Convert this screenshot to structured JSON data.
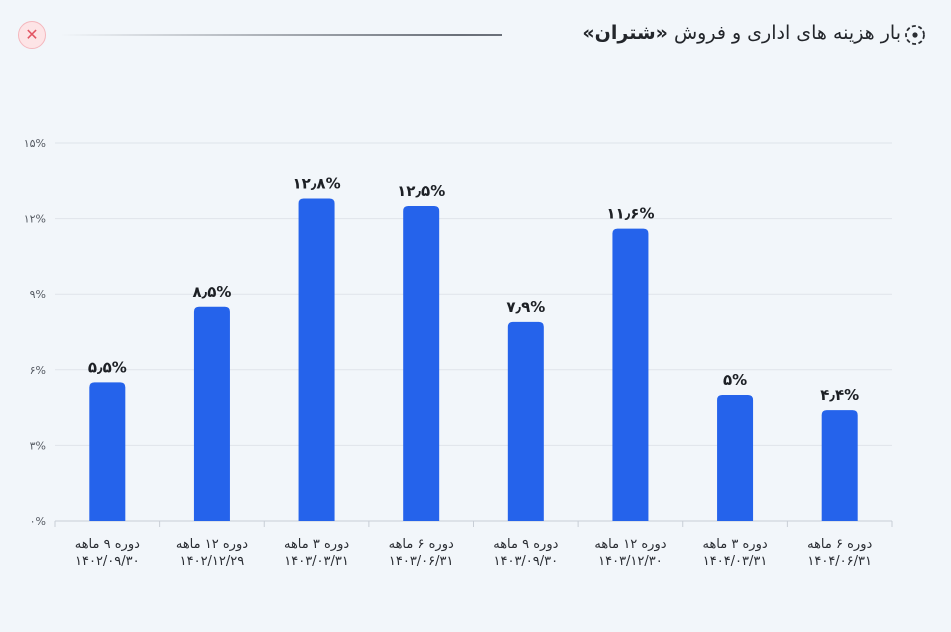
{
  "header": {
    "title_prefix": "بار هزینه های اداری و فروش",
    "title_company": "«شتران»",
    "close_icon": "close-icon",
    "title_icon": "target-icon"
  },
  "colors": {
    "bar": "#2563eb",
    "grid": "#dfe4ea",
    "close": "#e25563"
  },
  "chart_data": {
    "type": "bar",
    "title": "بار هزینه های اداری و فروش «شتران»",
    "categories": [
      [
        "دوره ۹ ماهه",
        "۱۴۰۲/۰۹/۳۰"
      ],
      [
        "دوره ۱۲ ماهه",
        "۱۴۰۲/۱۲/۲۹"
      ],
      [
        "دوره ۳ ماهه",
        "۱۴۰۳/۰۳/۳۱"
      ],
      [
        "دوره ۶ ماهه",
        "۱۴۰۳/۰۶/۳۱"
      ],
      [
        "دوره ۹ ماهه",
        "۱۴۰۳/۰۹/۳۰"
      ],
      [
        "دوره ۱۲ ماهه",
        "۱۴۰۳/۱۲/۳۰"
      ],
      [
        "دوره ۳ ماهه",
        "۱۴۰۴/۰۳/۳۱"
      ],
      [
        "دوره ۶ ماهه",
        "۱۴۰۴/۰۶/۳۱"
      ]
    ],
    "values": [
      5.5,
      8.5,
      12.8,
      12.5,
      7.9,
      11.6,
      5,
      4.4
    ],
    "data_labels": [
      "۵٫۵%",
      "۸٫۵%",
      "۱۲٫۸%",
      "۱۲٫۵%",
      "۷٫۹%",
      "۱۱٫۶%",
      "۵%",
      "۴٫۴%"
    ],
    "yticks": [
      0,
      3,
      6,
      9,
      12,
      15
    ],
    "ytick_labels": [
      "۰%",
      "۳%",
      "۶%",
      "۹%",
      "۱۲%",
      "۱۵%"
    ],
    "ylim": [
      0,
      15
    ],
    "grid": true,
    "legend": "none"
  }
}
